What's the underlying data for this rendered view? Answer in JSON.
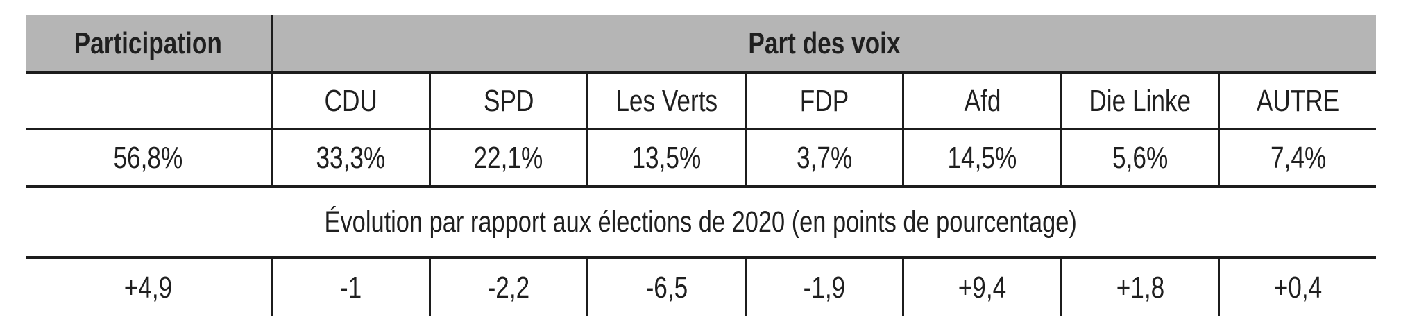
{
  "colors": {
    "background": "#ffffff",
    "header_bg": "#b5b5b5",
    "line": "#1c1c1c",
    "text": "#1f1f1f"
  },
  "table": {
    "header": {
      "participation": "Participation",
      "vote_share": "Part des voix"
    },
    "party_columns": [
      "CDU",
      "SPD",
      "Les Verts",
      "FDP",
      "Afd",
      "Die Linke",
      "AUTRE"
    ],
    "results_row": {
      "participation": "56,8%",
      "values": [
        "33,3%",
        "22,1%",
        "13,5%",
        "3,7%",
        "14,5%",
        "5,6%",
        "7,4%"
      ]
    },
    "evolution_caption": "Évolution par rapport aux élections de 2020 (en points de pourcentage)",
    "evolution_row": {
      "participation": "+4,9",
      "values": [
        "-1",
        "-2,2",
        "-6,5",
        "-1,9",
        "+9,4",
        "+1,8",
        "+0,4"
      ]
    }
  },
  "chart_data": {
    "type": "table",
    "title": "Part des voix",
    "header_groups": [
      {
        "label": "Participation",
        "span": 1
      },
      {
        "label": "Part des voix",
        "span": 7
      }
    ],
    "columns": [
      "Participation",
      "CDU",
      "SPD",
      "Les Verts",
      "FDP",
      "Afd",
      "Die Linke",
      "AUTRE"
    ],
    "rows": [
      {
        "name": "Part des voix (%)",
        "values": [
          56.8,
          33.3,
          22.1,
          13.5,
          3.7,
          14.5,
          5.6,
          7.4
        ]
      },
      {
        "name": "Évolution par rapport aux élections de 2020 (en points de pourcentage)",
        "values": [
          4.9,
          -1.0,
          -2.2,
          -6.5,
          -1.9,
          9.4,
          1.8,
          0.4
        ]
      }
    ],
    "layout": {
      "grid": "horizontal rules only between rows, vertical rules between columns",
      "legend_position": "none"
    }
  }
}
